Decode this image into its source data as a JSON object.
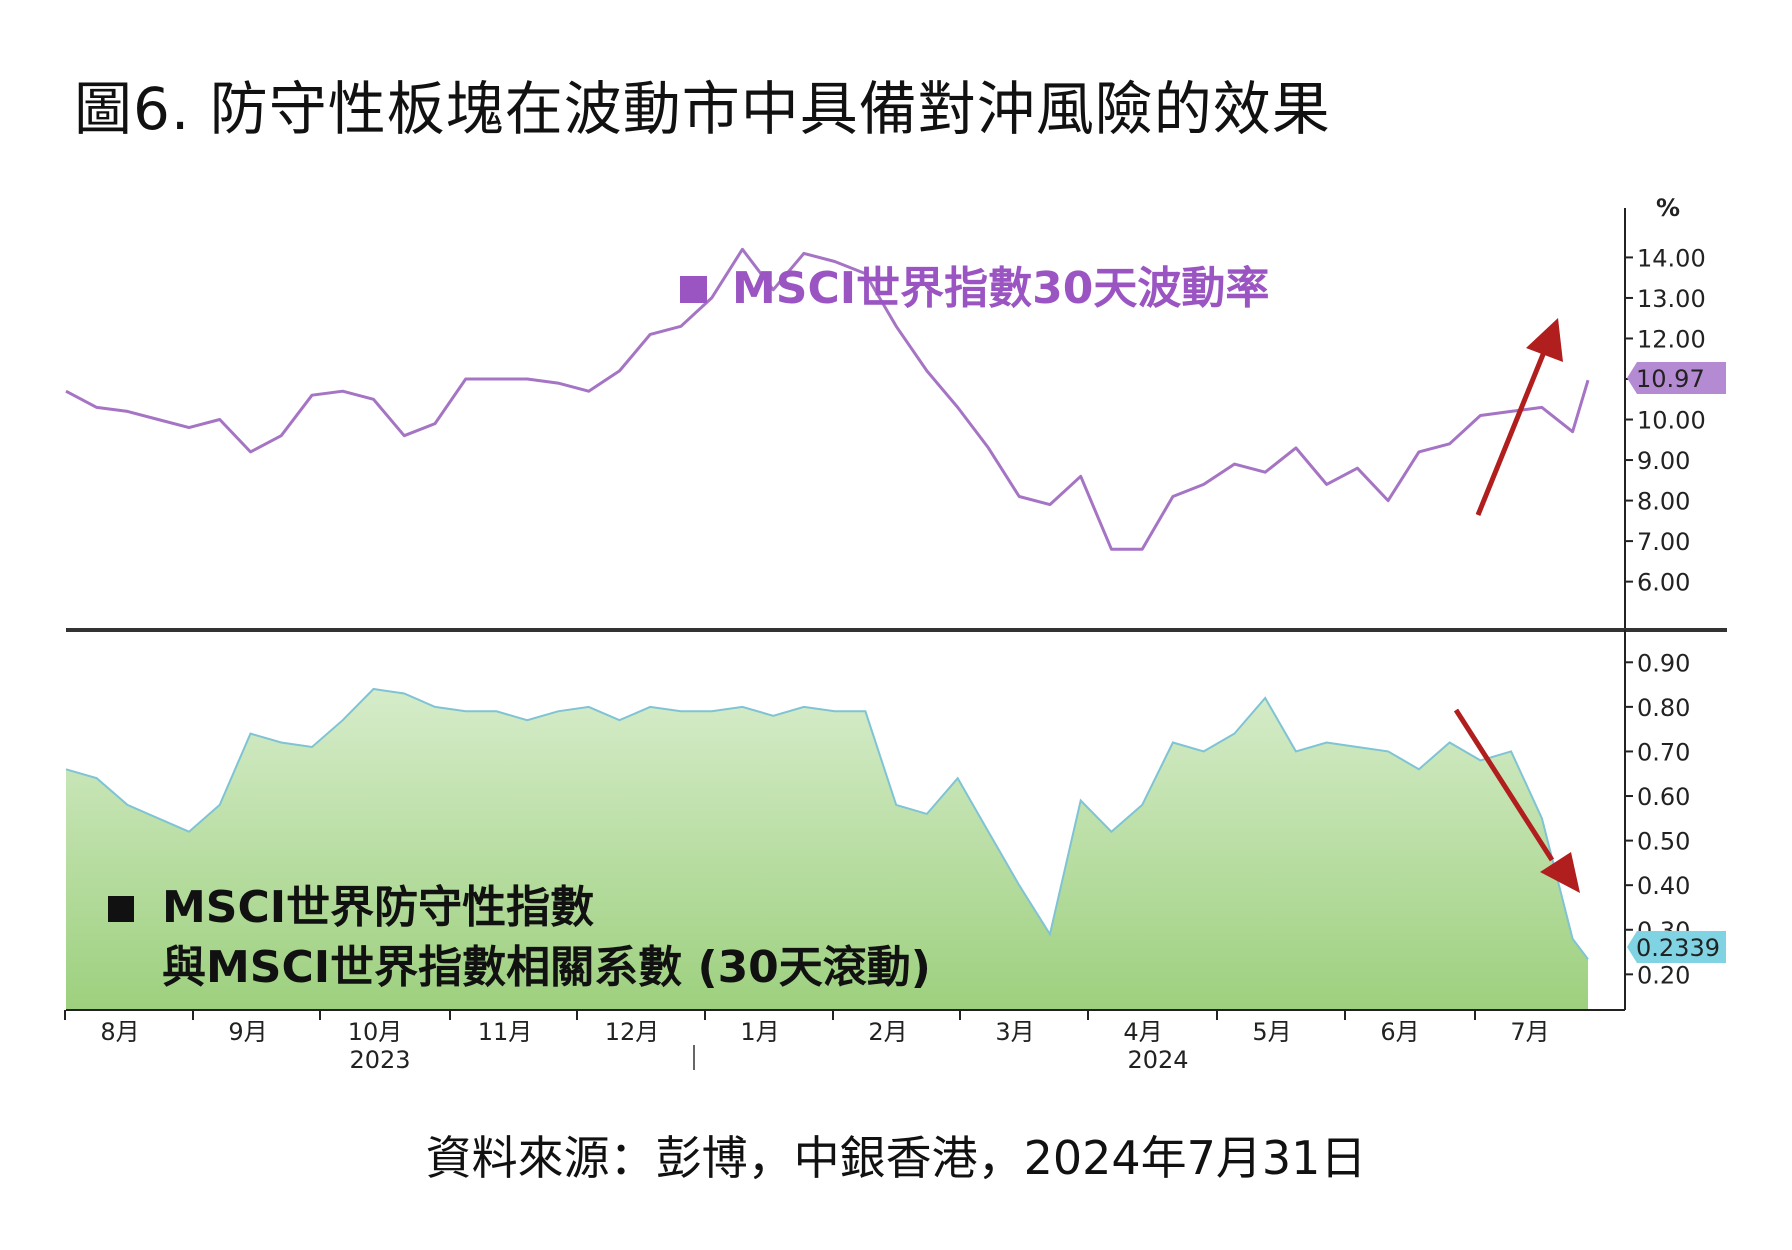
{
  "title": "圖6. 防守性板塊在波動市中具備對沖風險的效果",
  "source": "資料來源：彭博，中銀香港，2024年7月31日",
  "colors": {
    "volatility": "#a574c4",
    "volatility_legend": "#9b55c2",
    "correlation_fill_top": "#d6ecca",
    "correlation_fill_bottom": "#9dd07e",
    "correlation_line": "#7fc3d4",
    "arrow": "#b01e1e",
    "axis": "#222222",
    "divider": "#333333",
    "tag_volatility": "#b48ad3",
    "tag_correlation": "#7fd3e3"
  },
  "chart_data": [
    {
      "type": "line",
      "legend": "MSCI世界指數30天波動率",
      "unit": "%",
      "ylim": [
        5.3,
        14.8
      ],
      "yticks": [
        "14.00",
        "13.00",
        "12.00",
        "11.00",
        "10.00",
        "9.00",
        "8.00",
        "7.00",
        "6.00"
      ],
      "ytick_values": [
        14,
        13,
        12,
        11,
        10,
        9,
        8,
        7,
        6
      ],
      "latest_value_tag": "10.97",
      "latest_value": 10.97,
      "x": [
        2023.59,
        2023.61,
        2023.63,
        2023.65,
        2023.67,
        2023.69,
        2023.71,
        2023.73,
        2023.75,
        2023.77,
        2023.79,
        2023.81,
        2023.83,
        2023.85,
        2023.87,
        2023.89,
        2023.91,
        2023.93,
        2023.95,
        2023.97,
        2023.99,
        2024.01,
        2024.03,
        2024.05,
        2024.07,
        2024.09,
        2024.11,
        2024.13,
        2024.15,
        2024.17,
        2024.19,
        2024.21,
        2024.23,
        2024.25,
        2024.27,
        2024.29,
        2024.31,
        2024.33,
        2024.35,
        2024.37,
        2024.39,
        2024.41,
        2024.43,
        2024.45,
        2024.47,
        2024.49,
        2024.51,
        2024.53,
        2024.55,
        2024.57,
        2024.58
      ],
      "values": [
        10.7,
        10.3,
        10.2,
        10.0,
        9.8,
        10.0,
        9.2,
        9.6,
        10.6,
        10.7,
        10.5,
        9.6,
        9.9,
        11.0,
        11.0,
        11.0,
        10.9,
        10.7,
        11.2,
        12.1,
        12.3,
        13.0,
        14.2,
        13.2,
        14.1,
        13.9,
        13.6,
        12.3,
        11.2,
        10.3,
        9.3,
        8.1,
        7.9,
        8.6,
        6.8,
        6.8,
        8.1,
        8.4,
        8.9,
        8.7,
        9.3,
        8.4,
        8.8,
        8.0,
        9.2,
        9.4,
        10.1,
        10.2,
        10.3,
        9.7,
        10.97
      ],
      "arrow": "up"
    },
    {
      "type": "area",
      "legend_lines": [
        "MSCI世界防守性指數",
        "與MSCI世界指數相關系數 (30天滾動)"
      ],
      "ylim": [
        0.12,
        0.95
      ],
      "yticks": [
        "0.90",
        "0.80",
        "0.70",
        "0.60",
        "0.50",
        "0.40",
        "0.30",
        "0.20"
      ],
      "ytick_values": [
        0.9,
        0.8,
        0.7,
        0.6,
        0.5,
        0.4,
        0.3,
        0.2
      ],
      "latest_value_tag": "0.2339",
      "latest_value": 0.2339,
      "x": [
        2023.59,
        2023.61,
        2023.63,
        2023.65,
        2023.67,
        2023.69,
        2023.71,
        2023.73,
        2023.75,
        2023.77,
        2023.79,
        2023.81,
        2023.83,
        2023.85,
        2023.87,
        2023.89,
        2023.91,
        2023.93,
        2023.95,
        2023.97,
        2023.99,
        2024.01,
        2024.03,
        2024.05,
        2024.07,
        2024.09,
        2024.11,
        2024.13,
        2024.15,
        2024.17,
        2024.19,
        2024.21,
        2024.23,
        2024.25,
        2024.27,
        2024.29,
        2024.31,
        2024.33,
        2024.35,
        2024.37,
        2024.39,
        2024.41,
        2024.43,
        2024.45,
        2024.47,
        2024.49,
        2024.51,
        2024.53,
        2024.55,
        2024.57,
        2024.58
      ],
      "values": [
        0.66,
        0.64,
        0.58,
        0.55,
        0.52,
        0.58,
        0.74,
        0.72,
        0.71,
        0.77,
        0.84,
        0.83,
        0.8,
        0.79,
        0.79,
        0.77,
        0.79,
        0.8,
        0.77,
        0.8,
        0.79,
        0.79,
        0.8,
        0.78,
        0.8,
        0.79,
        0.79,
        0.58,
        0.56,
        0.64,
        0.52,
        0.4,
        0.29,
        0.59,
        0.52,
        0.58,
        0.72,
        0.7,
        0.74,
        0.82,
        0.7,
        0.72,
        0.71,
        0.7,
        0.66,
        0.72,
        0.68,
        0.7,
        0.55,
        0.28,
        0.2339
      ],
      "arrow": "down"
    }
  ],
  "x_axis": {
    "months": [
      "8月",
      "9月",
      "10月",
      "11月",
      "12月",
      "1月",
      "2月",
      "3月",
      "4月",
      "5月",
      "6月",
      "7月"
    ],
    "years": [
      "2023",
      "2024"
    ]
  }
}
